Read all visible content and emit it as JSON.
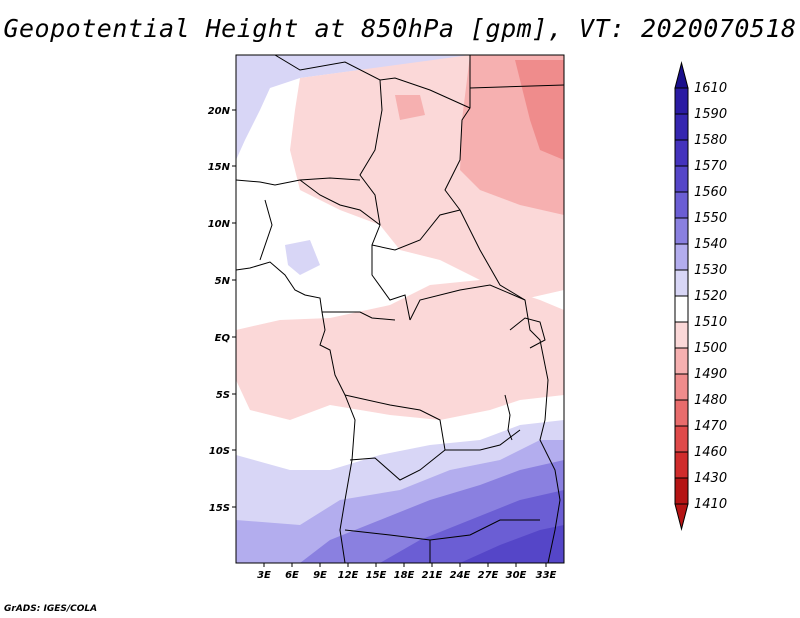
{
  "title": "Geopotential Height at 850hPa [gpm], VT: 2020070518",
  "credit": "GrADS: IGES/COLA",
  "map": {
    "lat_labels": [
      "20N",
      "15N",
      "10N",
      "5N",
      "EQ",
      "5S",
      "10S",
      "15S"
    ],
    "lon_labels": [
      "3E",
      "6E",
      "9E",
      "12E",
      "15E",
      "18E",
      "21E",
      "24E",
      "27E",
      "30E",
      "33E"
    ]
  },
  "colorbar": {
    "levels": [
      "1610",
      "1590",
      "1580",
      "1570",
      "1560",
      "1550",
      "1540",
      "1530",
      "1520",
      "1510",
      "1500",
      "1490",
      "1480",
      "1470",
      "1460",
      "1430",
      "1410"
    ],
    "colors": [
      "#1a0f8c",
      "#2a1ba3",
      "#3526b0",
      "#4433bd",
      "#5546c8",
      "#6b5ed4",
      "#8a80e0",
      "#b3adee",
      "#d8d6f6",
      "#ffffff",
      "#fbd8d8",
      "#f6b0b0",
      "#ef8c8c",
      "#e86c6c",
      "#df4a4a",
      "#d02c2c",
      "#b51414"
    ]
  }
}
